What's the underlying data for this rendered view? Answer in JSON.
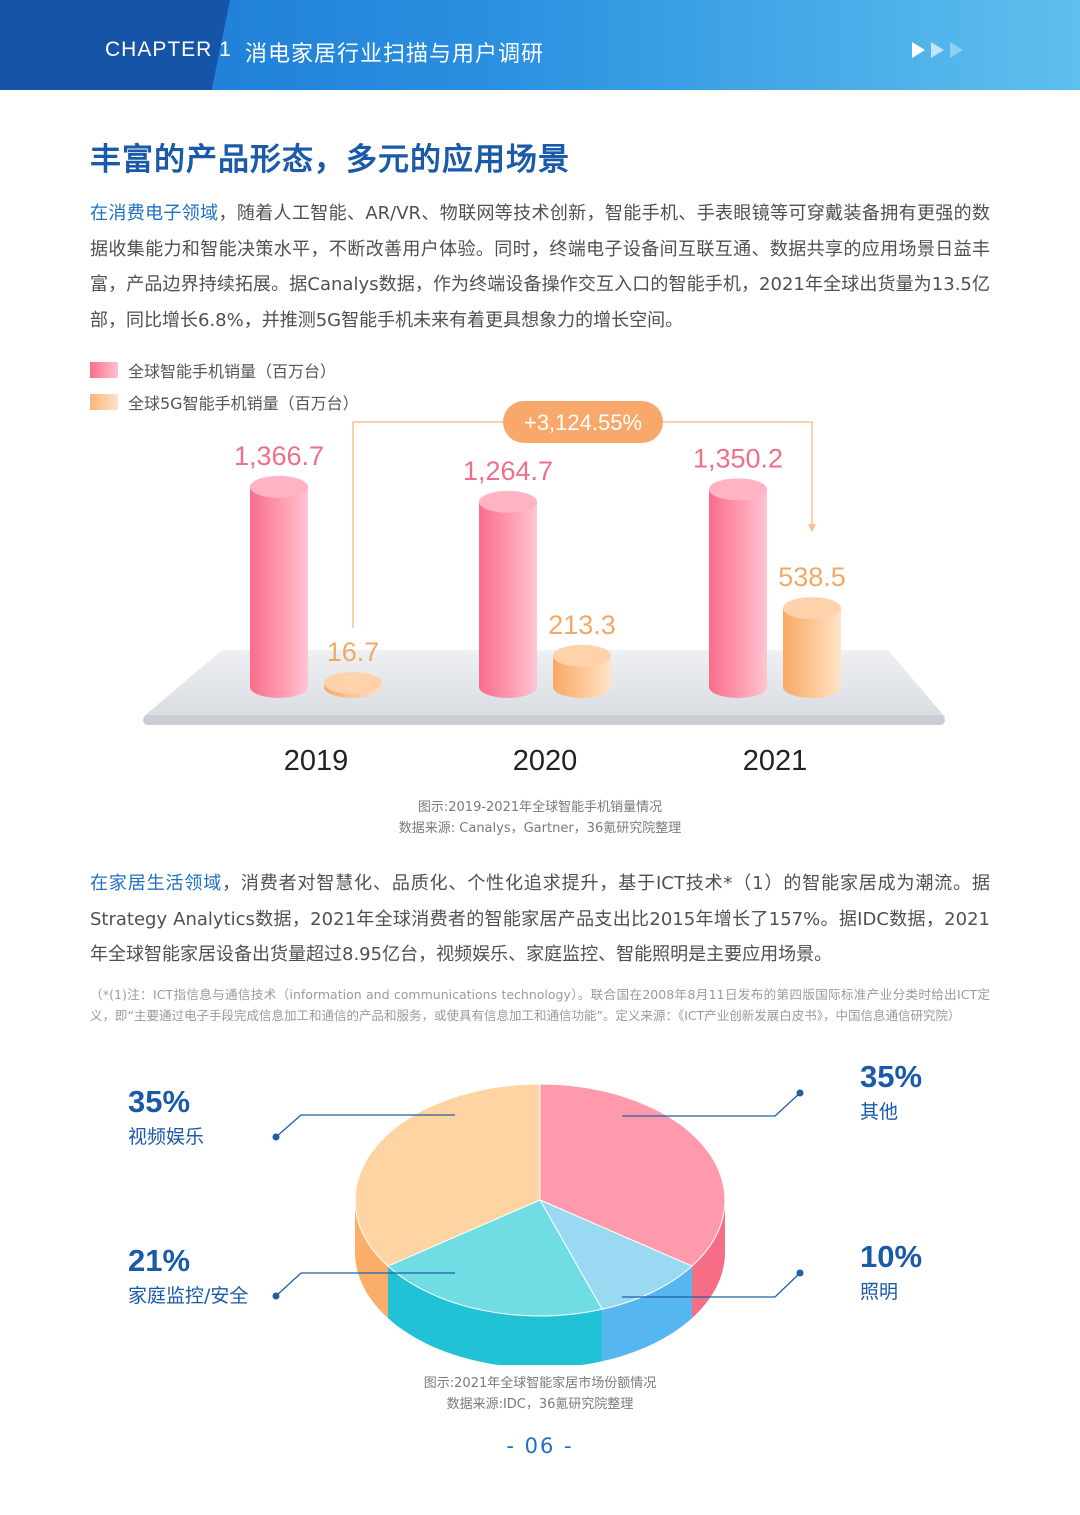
{
  "header": {
    "chapter": "CHAPTER 1",
    "title": "消电家居行业扫描与用户调研"
  },
  "section_title": "丰富的产品形态，多元的应用场景",
  "para1": {
    "highlight": "在消费电子领域",
    "text": "，随着人工智能、AR/VR、物联网等技术创新，智能手机、手表眼镜等可穿戴装备拥有更强的数据收集能力和智能决策水平，不断改善用户体验。同时，终端电子设备间互联互通、数据共享的应用场景日益丰富，产品边界持续拓展。据Canalys数据，作为终端设备操作交互入口的智能手机，2021年全球出货量为13.5亿部，同比增长6.8%，并推测5G智能手机未来有着更具想象力的增长空间。"
  },
  "chart_data": [
    {
      "type": "bar",
      "categories": [
        "2019",
        "2020",
        "2021"
      ],
      "series": [
        {
          "name": "全球智能手机销量（百万台）",
          "values": [
            1366.7,
            1264.7,
            1350.2
          ],
          "labels": [
            "1,366.7",
            "1,264.7",
            "1,350.2"
          ]
        },
        {
          "name": "全球5G智能手机销量（百万台）",
          "values": [
            16.7,
            213.3,
            538.5
          ],
          "labels": [
            "16.7",
            "213.3",
            "538.5"
          ]
        }
      ],
      "annotation": "+3,124.55%",
      "colors": {
        "series1": "#f86e8c",
        "series2": "#fbb57a"
      }
    },
    {
      "type": "pie",
      "slices": [
        {
          "label": "视频娱乐",
          "value": 35,
          "text": "35%",
          "color": "#ffd4a3"
        },
        {
          "label": "其他",
          "value": 35,
          "text": "35%",
          "color": "#ff9aad"
        },
        {
          "label": "照明",
          "value": 10,
          "text": "10%",
          "color": "#9ad9f2"
        },
        {
          "label": "家庭监控/安全",
          "value": 21,
          "text": "21%",
          "color": "#6fdde3"
        }
      ]
    }
  ],
  "caption1": {
    "line1": "图示:2019-2021年全球智能手机销量情况",
    "line2": "数据来源: Canalys，Gartner，36氪研究院整理"
  },
  "para2": {
    "highlight": "在家居生活领域",
    "text": "，消费者对智慧化、品质化、个性化追求提升，基于ICT技术*（1）的智能家居成为潮流。据Strategy Analytics数据，2021年全球消费者的智能家居产品支出比2015年增长了157%。据IDC数据，2021年全球智能家居设备出货量超过8.95亿台，视频娱乐、家庭监控、智能照明是主要应用场景。"
  },
  "note": "（*(1)注：ICT指信息与通信技术（information and communications technology）。联合国在2008年8月11日发布的第四版国际标准产业分类时给出ICT定义，即“主要通过电子手段完成信息加工和通信的产品和服务，或使具有信息加工和通信功能”。定义来源：《ICT产业创新发展白皮书》，中国信息通信研究院）",
  "caption2": {
    "line1": "图示:2021年全球智能家居市场份额情况",
    "line2": "数据来源:IDC，36氪研究院整理"
  },
  "page_number": "- 06 -"
}
